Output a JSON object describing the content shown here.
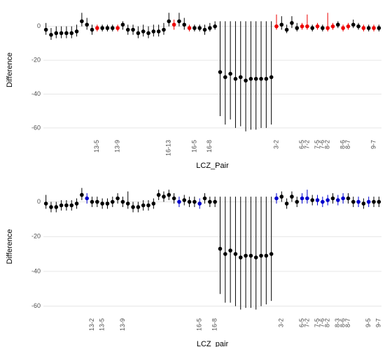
{
  "chart_data": [
    {
      "type": "errorbar",
      "x_label": "LCZ_Pair",
      "y_label": "Difference",
      "categories": [
        null,
        null,
        null,
        null,
        null,
        null,
        null,
        null,
        null,
        null,
        "13-5",
        null,
        null,
        null,
        "13-9",
        null,
        null,
        null,
        null,
        null,
        null,
        null,
        null,
        null,
        "16-13",
        null,
        null,
        null,
        null,
        "16-5",
        null,
        null,
        "16-8",
        null,
        null,
        null,
        null,
        null,
        null,
        null,
        null,
        null,
        null,
        null,
        null,
        "3-2",
        null,
        null,
        null,
        null,
        "6-5",
        "7-2",
        null,
        "7-5",
        "7-6",
        "8-2",
        null,
        null,
        "8-6",
        "8-7",
        null,
        null,
        null,
        null,
        "9-7",
        null
      ],
      "values": [
        -2,
        -5,
        -4,
        -4,
        -4,
        -4,
        -3,
        3,
        1,
        -2,
        -1,
        -1,
        -1,
        -1,
        -1,
        1,
        -2,
        -2,
        -4,
        -3,
        -4,
        -3,
        -3,
        -2,
        3,
        1,
        3,
        1,
        -1,
        -1,
        -1,
        -2,
        -1,
        0,
        -27,
        -30,
        -28,
        -31,
        -30,
        -32,
        -31,
        -31,
        -31,
        -31,
        -30,
        0,
        1,
        -2,
        2,
        -1,
        0,
        0,
        -1,
        0,
        -1,
        -1,
        0,
        1,
        -1,
        0,
        1,
        0,
        -1,
        -1,
        -1,
        -1
      ],
      "upper": [
        2,
        -1,
        0,
        0,
        0,
        0,
        1,
        8,
        5,
        1,
        1,
        1,
        1,
        1,
        1,
        3,
        1,
        1,
        0,
        1,
        0,
        1,
        1,
        2,
        8,
        4,
        8,
        5,
        1,
        1,
        1,
        1,
        2,
        3,
        3,
        3,
        3,
        3,
        3,
        3,
        3,
        3,
        3,
        3,
        3,
        7,
        6,
        1,
        6,
        2,
        2,
        7,
        1,
        2,
        1,
        8,
        2,
        3,
        1,
        2,
        4,
        2,
        1,
        1,
        1,
        1
      ],
      "lower": [
        -5,
        -8,
        -7,
        -7,
        -7,
        -7,
        -6,
        0,
        -2,
        -5,
        -3,
        -3,
        -3,
        -3,
        -3,
        -2,
        -5,
        -5,
        -7,
        -6,
        -7,
        -6,
        -6,
        -5,
        0,
        -2,
        0,
        -2,
        -3,
        -3,
        -3,
        -5,
        -3,
        -2,
        -53,
        -58,
        -55,
        -60,
        -59,
        -62,
        -61,
        -61,
        -60,
        -60,
        -58,
        -2,
        -2,
        -4,
        -1,
        -3,
        -2,
        -2,
        -3,
        -2,
        -3,
        -3,
        -2,
        -1,
        -3,
        -2,
        -1,
        -2,
        -3,
        -3,
        -3,
        -3
      ],
      "colors": [
        "#000",
        "#000",
        "#000",
        "#000",
        "#000",
        "#000",
        "#000",
        "#000",
        "#000",
        "#000",
        "#e00",
        "#000",
        "#000",
        "#000",
        "#e00",
        "#000",
        "#000",
        "#000",
        "#000",
        "#000",
        "#000",
        "#000",
        "#000",
        "#000",
        "#000",
        "#e00",
        "#000",
        "#000",
        "#e00",
        "#000",
        "#000",
        "#000",
        "#000",
        "#000",
        "#000",
        "#000",
        "#000",
        "#000",
        "#000",
        "#000",
        "#000",
        "#000",
        "#000",
        "#000",
        "#000",
        "#e00",
        "#000",
        "#000",
        "#000",
        "#000",
        "#e00",
        "#e00",
        "#000",
        "#e00",
        "#000",
        "#e00",
        "#e00",
        "#000",
        "#e00",
        "#e00",
        "#000",
        "#000",
        "#e00",
        "#000",
        "#e00",
        "#000"
      ],
      "ylim": [
        -65,
        13.5
      ],
      "yticks": [
        0,
        -20,
        -40,
        -60
      ],
      "grid": true
    },
    {
      "type": "errorbar",
      "x_label": "LCZ_pair",
      "y_label": "Difference",
      "categories": [
        null,
        null,
        null,
        null,
        null,
        null,
        null,
        null,
        null,
        "13-2",
        null,
        "13-5",
        null,
        null,
        null,
        "13-9",
        null,
        null,
        null,
        null,
        null,
        null,
        null,
        null,
        null,
        null,
        null,
        null,
        null,
        null,
        "16-5",
        null,
        null,
        "16-8",
        null,
        null,
        null,
        null,
        null,
        null,
        null,
        null,
        null,
        null,
        null,
        null,
        "3-2",
        null,
        null,
        null,
        "6-5",
        "7-2",
        null,
        "7-5",
        "7-6",
        "8-2",
        null,
        "8-3",
        "8-6",
        "8-7",
        null,
        null,
        null,
        "9-5",
        null,
        "9-7"
      ],
      "values": [
        -1,
        -3,
        -3,
        -2,
        -2,
        -2,
        -1,
        4,
        2,
        0,
        0,
        -1,
        -1,
        0,
        2,
        0,
        -1,
        -3,
        -3,
        -2,
        -2,
        -1,
        4,
        3,
        4,
        2,
        0,
        1,
        0,
        0,
        -1,
        2,
        0,
        0,
        -27,
        -30,
        -28,
        -30,
        -32,
        -31,
        -31,
        -32,
        -31,
        -31,
        -30,
        2,
        3,
        -1,
        3,
        0,
        2,
        2,
        1,
        1,
        0,
        1,
        2,
        1,
        2,
        2,
        0,
        0,
        -1,
        0,
        0,
        0
      ],
      "upper": [
        4,
        0,
        0,
        1,
        1,
        1,
        2,
        8,
        5,
        3,
        3,
        2,
        2,
        3,
        5,
        3,
        6,
        0,
        0,
        1,
        1,
        2,
        7,
        6,
        7,
        5,
        3,
        4,
        3,
        3,
        2,
        5,
        3,
        3,
        3,
        3,
        3,
        3,
        3,
        3,
        3,
        3,
        3,
        3,
        3,
        5,
        6,
        2,
        6,
        3,
        5,
        7,
        4,
        4,
        3,
        4,
        5,
        4,
        5,
        5,
        3,
        3,
        2,
        3,
        3,
        3
      ],
      "lower": [
        -4,
        -6,
        -6,
        -5,
        -5,
        -5,
        -4,
        1,
        -1,
        -3,
        -3,
        -4,
        -4,
        -3,
        -1,
        -3,
        -4,
        -6,
        -6,
        -5,
        -5,
        -4,
        1,
        0,
        1,
        -1,
        -3,
        -2,
        -3,
        -3,
        -4,
        -1,
        -3,
        -3,
        -53,
        -58,
        -58,
        -60,
        -62,
        -61,
        -61,
        -62,
        -60,
        -59,
        -57,
        -1,
        0,
        -4,
        0,
        -3,
        -1,
        -1,
        -2,
        -2,
        -3,
        -2,
        -1,
        -2,
        -1,
        -1,
        -3,
        -3,
        -4,
        -3,
        -3,
        -3
      ],
      "colors": [
        "#000",
        "#000",
        "#000",
        "#000",
        "#000",
        "#000",
        "#000",
        "#000",
        "#00c",
        "#000",
        "#000",
        "#000",
        "#000",
        "#000",
        "#000",
        "#000",
        "#000",
        "#000",
        "#000",
        "#000",
        "#000",
        "#000",
        "#000",
        "#000",
        "#000",
        "#000",
        "#00c",
        "#000",
        "#000",
        "#000",
        "#00c",
        "#000",
        "#000",
        "#000",
        "#000",
        "#000",
        "#000",
        "#000",
        "#000",
        "#000",
        "#000",
        "#000",
        "#000",
        "#000",
        "#000",
        "#00c",
        "#000",
        "#000",
        "#000",
        "#000",
        "#00c",
        "#00c",
        "#000",
        "#00c",
        "#00c",
        "#00c",
        "#000",
        "#00c",
        "#00c",
        "#000",
        "#000",
        "#00c",
        "#000",
        "#00c",
        "#000",
        "#000"
      ],
      "ylim": [
        -65,
        13.5
      ],
      "yticks": [
        0,
        -20,
        -40,
        -60
      ],
      "grid": true
    }
  ]
}
